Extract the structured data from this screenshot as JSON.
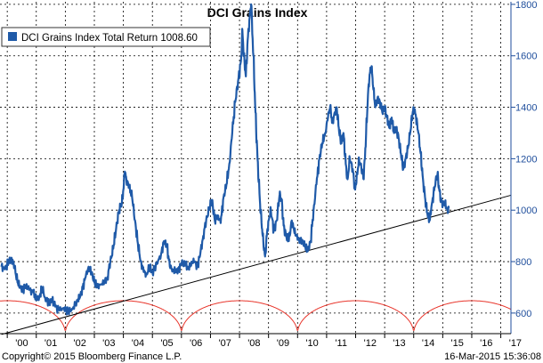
{
  "chart_data": {
    "type": "line",
    "title": "DCI Grains Index",
    "legend": {
      "label": "DCI Grains Index Total Return 1008.60",
      "placement": "top-left"
    },
    "xlabel": "",
    "ylabel": "",
    "x_ticks": [
      "'00",
      "'01",
      "'02",
      "'03",
      "'04",
      "'05",
      "'06",
      "'07",
      "'08",
      "'09",
      "'10",
      "'11",
      "'12",
      "'13",
      "'14",
      "'15",
      "'16",
      "'17"
    ],
    "y_ticks": [
      600,
      800,
      1000,
      1200,
      1400,
      1600,
      1800
    ],
    "ylim": [
      520,
      1810
    ],
    "xlim": [
      1999.75,
      2017.35
    ],
    "grid": true,
    "y_axis_side": "right",
    "colors": {
      "series": "#1f5aa8",
      "trend": "#000000",
      "cycle": "#e8342a"
    },
    "series": [
      {
        "name": "DCI Grains Index Total Return",
        "points": [
          [
            1999.8,
            780
          ],
          [
            1999.92,
            770
          ],
          [
            2000.05,
            800
          ],
          [
            2000.15,
            815
          ],
          [
            2000.25,
            780
          ],
          [
            2000.35,
            720
          ],
          [
            2000.45,
            700
          ],
          [
            2000.55,
            690
          ],
          [
            2000.65,
            710
          ],
          [
            2000.75,
            690
          ],
          [
            2000.9,
            680
          ],
          [
            2001.0,
            650
          ],
          [
            2001.1,
            660
          ],
          [
            2001.2,
            700
          ],
          [
            2001.3,
            660
          ],
          [
            2001.45,
            640
          ],
          [
            2001.55,
            650
          ],
          [
            2001.65,
            625
          ],
          [
            2001.8,
            610
          ],
          [
            2001.95,
            620
          ],
          [
            2002.1,
            605
          ],
          [
            2002.25,
            615
          ],
          [
            2002.4,
            650
          ],
          [
            2002.5,
            660
          ],
          [
            2002.6,
            700
          ],
          [
            2002.7,
            740
          ],
          [
            2002.8,
            780
          ],
          [
            2002.9,
            760
          ],
          [
            2003.0,
            720
          ],
          [
            2003.1,
            700
          ],
          [
            2003.2,
            710
          ],
          [
            2003.35,
            720
          ],
          [
            2003.45,
            740
          ],
          [
            2003.55,
            800
          ],
          [
            2003.65,
            850
          ],
          [
            2003.75,
            930
          ],
          [
            2003.85,
            1000
          ],
          [
            2003.95,
            1030
          ],
          [
            2004.0,
            1080
          ],
          [
            2004.05,
            1150
          ],
          [
            2004.1,
            1120
          ],
          [
            2004.2,
            1090
          ],
          [
            2004.3,
            1050
          ],
          [
            2004.4,
            960
          ],
          [
            2004.5,
            870
          ],
          [
            2004.6,
            800
          ],
          [
            2004.7,
            760
          ],
          [
            2004.8,
            750
          ],
          [
            2004.9,
            780
          ],
          [
            2005.0,
            760
          ],
          [
            2005.15,
            790
          ],
          [
            2005.3,
            830
          ],
          [
            2005.4,
            880
          ],
          [
            2005.5,
            860
          ],
          [
            2005.6,
            780
          ],
          [
            2005.7,
            770
          ],
          [
            2005.8,
            760
          ],
          [
            2005.9,
            770
          ],
          [
            2006.0,
            790
          ],
          [
            2006.15,
            790
          ],
          [
            2006.25,
            770
          ],
          [
            2006.35,
            800
          ],
          [
            2006.45,
            800
          ],
          [
            2006.55,
            780
          ],
          [
            2006.65,
            830
          ],
          [
            2006.75,
            900
          ],
          [
            2006.85,
            960
          ],
          [
            2006.95,
            1000
          ],
          [
            2007.05,
            1040
          ],
          [
            2007.15,
            960
          ],
          [
            2007.25,
            980
          ],
          [
            2007.35,
            950
          ],
          [
            2007.45,
            1050
          ],
          [
            2007.55,
            1100
          ],
          [
            2007.65,
            1180
          ],
          [
            2007.75,
            1300
          ],
          [
            2007.85,
            1420
          ],
          [
            2007.95,
            1500
          ],
          [
            2008.05,
            1580
          ],
          [
            2008.1,
            1700
          ],
          [
            2008.15,
            1600
          ],
          [
            2008.22,
            1520
          ],
          [
            2008.28,
            1660
          ],
          [
            2008.35,
            1750
          ],
          [
            2008.4,
            1800
          ],
          [
            2008.48,
            1600
          ],
          [
            2008.55,
            1380
          ],
          [
            2008.62,
            1200
          ],
          [
            2008.7,
            1040
          ],
          [
            2008.76,
            950
          ],
          [
            2008.82,
            880
          ],
          [
            2008.88,
            820
          ],
          [
            2008.94,
            900
          ],
          [
            2009.0,
            960
          ],
          [
            2009.08,
            1000
          ],
          [
            2009.18,
            920
          ],
          [
            2009.28,
            960
          ],
          [
            2009.38,
            1060
          ],
          [
            2009.45,
            1040
          ],
          [
            2009.52,
            940
          ],
          [
            2009.6,
            900
          ],
          [
            2009.7,
            880
          ],
          [
            2009.8,
            960
          ],
          [
            2009.88,
            920
          ],
          [
            2009.95,
            900
          ],
          [
            2010.05,
            890
          ],
          [
            2010.15,
            880
          ],
          [
            2010.25,
            860
          ],
          [
            2010.35,
            840
          ],
          [
            2010.45,
            880
          ],
          [
            2010.55,
            1000
          ],
          [
            2010.65,
            1100
          ],
          [
            2010.75,
            1200
          ],
          [
            2010.85,
            1260
          ],
          [
            2010.95,
            1300
          ],
          [
            2011.05,
            1360
          ],
          [
            2011.12,
            1400
          ],
          [
            2011.2,
            1340
          ],
          [
            2011.28,
            1380
          ],
          [
            2011.35,
            1400
          ],
          [
            2011.42,
            1320
          ],
          [
            2011.5,
            1260
          ],
          [
            2011.58,
            1300
          ],
          [
            2011.66,
            1180
          ],
          [
            2011.72,
            1120
          ],
          [
            2011.8,
            1200
          ],
          [
            2011.9,
            1160
          ],
          [
            2011.98,
            1080
          ],
          [
            2012.05,
            1140
          ],
          [
            2012.12,
            1200
          ],
          [
            2012.2,
            1160
          ],
          [
            2012.28,
            1120
          ],
          [
            2012.36,
            1300
          ],
          [
            2012.44,
            1480
          ],
          [
            2012.5,
            1540
          ],
          [
            2012.55,
            1560
          ],
          [
            2012.6,
            1480
          ],
          [
            2012.68,
            1400
          ],
          [
            2012.76,
            1440
          ],
          [
            2012.84,
            1420
          ],
          [
            2012.92,
            1380
          ],
          [
            2013.0,
            1400
          ],
          [
            2013.08,
            1360
          ],
          [
            2013.16,
            1320
          ],
          [
            2013.24,
            1360
          ],
          [
            2013.32,
            1300
          ],
          [
            2013.4,
            1320
          ],
          [
            2013.48,
            1280
          ],
          [
            2013.56,
            1220
          ],
          [
            2013.64,
            1160
          ],
          [
            2013.72,
            1200
          ],
          [
            2013.8,
            1240
          ],
          [
            2013.88,
            1300
          ],
          [
            2013.94,
            1360
          ],
          [
            2014.0,
            1400
          ],
          [
            2014.08,
            1360
          ],
          [
            2014.16,
            1300
          ],
          [
            2014.24,
            1220
          ],
          [
            2014.32,
            1120
          ],
          [
            2014.4,
            1040
          ],
          [
            2014.48,
            980
          ],
          [
            2014.55,
            960
          ],
          [
            2014.6,
            1000
          ],
          [
            2014.68,
            1060
          ],
          [
            2014.76,
            1120
          ],
          [
            2014.82,
            1140
          ],
          [
            2014.88,
            1080
          ],
          [
            2014.94,
            1040
          ],
          [
            2015.0,
            1020
          ],
          [
            2015.08,
            1030
          ],
          [
            2015.16,
            1000
          ],
          [
            2015.21,
            1008.6
          ]
        ]
      },
      {
        "name": "",
        "style": "trendline",
        "points": [
          [
            1999.8,
            517
          ],
          [
            2017.35,
            1058
          ]
        ]
      },
      {
        "name": "",
        "style": "cycle-arcs",
        "period": 4,
        "anchors": [
          2002.0,
          2006.0,
          2010.0,
          2014.0
        ],
        "baseline": 520,
        "peak": 648
      }
    ]
  },
  "footer": {
    "copyright": "Copyright© 2015 Bloomberg Finance L.P.",
    "timestamp": "16-Mar-2015 15:36:08"
  }
}
